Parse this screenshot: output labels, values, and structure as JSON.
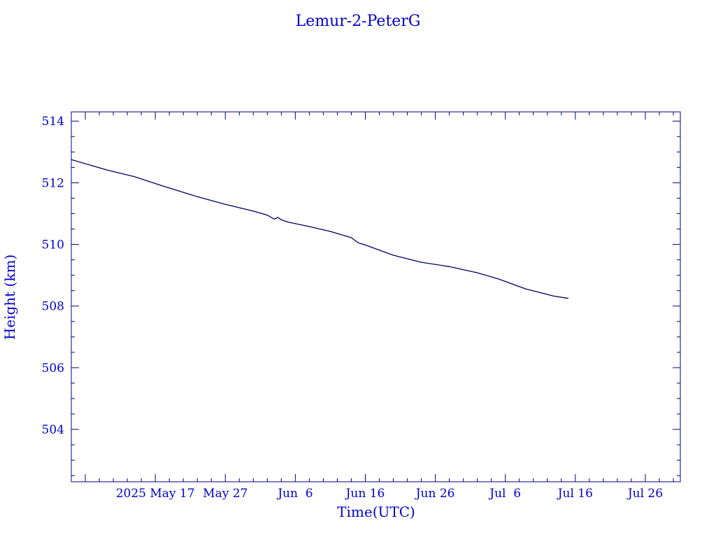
{
  "colors": {
    "axis": "#00007f",
    "text": "#0000cc",
    "line": "#000060",
    "background": "#ffffff"
  },
  "chart_data": {
    "type": "line",
    "title": "Lemur-2-PeterG",
    "xlabel": "Time(UTC)",
    "ylabel": "Height (km)",
    "grid": false,
    "x_axis_type": "date",
    "xlim": [
      "2025-05-05",
      "2025-07-31"
    ],
    "ylim": [
      502.3,
      514.3
    ],
    "x_ticks": [
      {
        "date": "2025-05-17",
        "label": "2025 May 17"
      },
      {
        "date": "2025-05-27",
        "label": "May 27"
      },
      {
        "date": "2025-06-06",
        "label": "Jun  6"
      },
      {
        "date": "2025-06-16",
        "label": "Jun 16"
      },
      {
        "date": "2025-06-26",
        "label": "Jun 26"
      },
      {
        "date": "2025-07-06",
        "label": "Jul  6"
      },
      {
        "date": "2025-07-16",
        "label": "Jul 16"
      },
      {
        "date": "2025-07-26",
        "label": "Jul 26"
      }
    ],
    "y_ticks": [
      504,
      506,
      508,
      510,
      512,
      514
    ],
    "series": [
      {
        "name": "",
        "points": [
          {
            "x": "2025-05-05",
            "y": 512.75
          },
          {
            "x": "2025-05-10",
            "y": 512.42
          },
          {
            "x": "2025-05-14",
            "y": 512.2
          },
          {
            "x": "2025-05-18",
            "y": 511.9
          },
          {
            "x": "2025-05-23",
            "y": 511.55
          },
          {
            "x": "2025-05-27",
            "y": 511.3
          },
          {
            "x": "2025-05-31",
            "y": 511.08
          },
          {
            "x": "2025-06-02",
            "y": 510.95
          },
          {
            "x": "2025-06-03",
            "y": 510.82
          },
          {
            "x": "2025-06-03T12:00",
            "y": 510.88
          },
          {
            "x": "2025-06-04",
            "y": 510.8
          },
          {
            "x": "2025-06-05",
            "y": 510.72
          },
          {
            "x": "2025-06-08",
            "y": 510.58
          },
          {
            "x": "2025-06-11",
            "y": 510.42
          },
          {
            "x": "2025-06-14",
            "y": 510.22
          },
          {
            "x": "2025-06-15",
            "y": 510.05
          },
          {
            "x": "2025-06-16",
            "y": 509.98
          },
          {
            "x": "2025-06-20",
            "y": 509.65
          },
          {
            "x": "2025-06-24",
            "y": 509.42
          },
          {
            "x": "2025-06-28",
            "y": 509.28
          },
          {
            "x": "2025-07-02",
            "y": 509.08
          },
          {
            "x": "2025-07-05",
            "y": 508.88
          },
          {
            "x": "2025-07-09",
            "y": 508.55
          },
          {
            "x": "2025-07-13",
            "y": 508.32
          },
          {
            "x": "2025-07-15",
            "y": 508.25
          }
        ]
      }
    ]
  }
}
